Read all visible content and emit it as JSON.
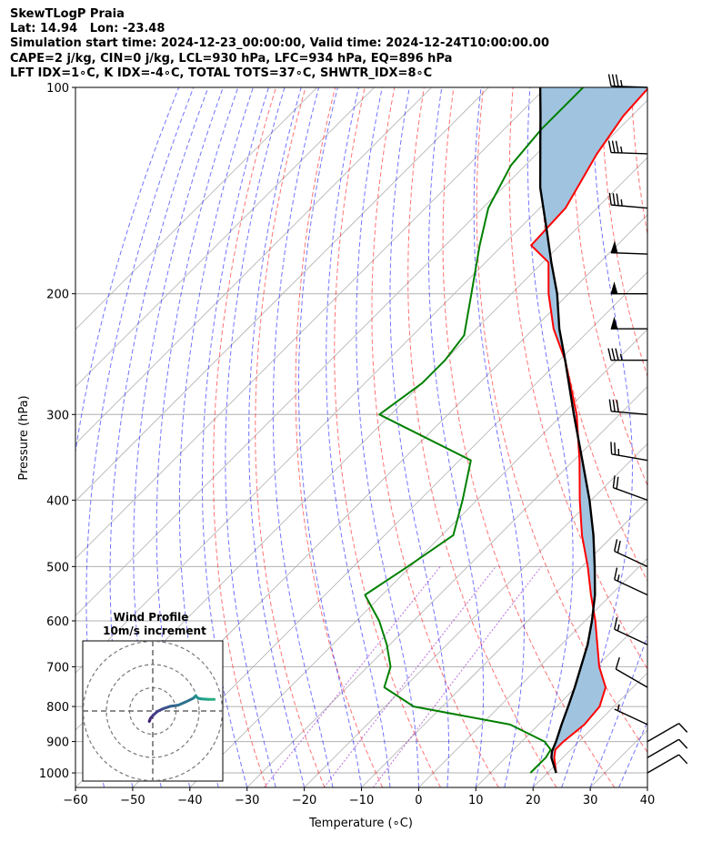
{
  "header": {
    "line1": "SkewTLogP Praia",
    "line2": "Lat: 14.94   Lon: -23.48",
    "line3": "Simulation start time: 2024-12-23_00:00:00, Valid time: 2024-12-24T10:00:00.00",
    "line4": "CAPE=2 j/kg, CIN=0 j/kg, LCL=930 hPa, LFC=934 hPa, EQ=896 hPa",
    "line5": "LFT IDX=1∘C, K IDX=-4∘C, TOTAL TOTS=37∘C, SHWTR_IDX=8∘C"
  },
  "chart_data": {
    "type": "line",
    "xlabel": "Temperature (∘C)",
    "ylabel": "Pressure (hPa)",
    "xlim": [
      -60,
      40
    ],
    "ylim": [
      1050,
      100
    ],
    "y_scale": "log",
    "skew": true,
    "grid": true,
    "x_ticks": [
      "−60",
      "−50",
      "−40",
      "−30",
      "−20",
      "−10",
      "0",
      "10",
      "20",
      "30",
      "40"
    ],
    "y_ticks": [
      "100",
      "200",
      "300",
      "400",
      "500",
      "600",
      "700",
      "800",
      "900",
      "1000"
    ],
    "series": [
      {
        "role": "temperature",
        "color": "#ff0000",
        "points": [
          [
            1000,
            21.5
          ],
          [
            950,
            18.5
          ],
          [
            925,
            17.3
          ],
          [
            900,
            17.3
          ],
          [
            850,
            18.0
          ],
          [
            800,
            17.5
          ],
          [
            750,
            15.2
          ],
          [
            700,
            10.5
          ],
          [
            650,
            6.3
          ],
          [
            600,
            1.8
          ],
          [
            550,
            -3.5
          ],
          [
            500,
            -9.0
          ],
          [
            450,
            -15.5
          ],
          [
            400,
            -22.0
          ],
          [
            350,
            -29.0
          ],
          [
            300,
            -37.5
          ],
          [
            250,
            -49.0
          ],
          [
            225,
            -56.5
          ],
          [
            200,
            -63.5
          ],
          [
            180,
            -69.0
          ],
          [
            170,
            -75.0
          ],
          [
            150,
            -75.5
          ],
          [
            125,
            -79.5
          ],
          [
            110,
            -81.5
          ],
          [
            100,
            -82.0
          ]
        ]
      },
      {
        "role": "dewpoint",
        "color": "#008000",
        "points": [
          [
            1000,
            17.0
          ],
          [
            950,
            17.0
          ],
          [
            925,
            16.5
          ],
          [
            900,
            14.0
          ],
          [
            850,
            5.0
          ],
          [
            800,
            -15.0
          ],
          [
            750,
            -23.5
          ],
          [
            700,
            -26.0
          ],
          [
            650,
            -30.5
          ],
          [
            600,
            -36.0
          ],
          [
            550,
            -43.0
          ],
          [
            500,
            -40.5
          ],
          [
            450,
            -38.0
          ],
          [
            400,
            -42.5
          ],
          [
            350,
            -48.0
          ],
          [
            300,
            -72.0
          ],
          [
            270,
            -70.0
          ],
          [
            250,
            -70.0
          ],
          [
            230,
            -71.0
          ],
          [
            200,
            -77.0
          ],
          [
            170,
            -84.0
          ],
          [
            150,
            -89.0
          ],
          [
            130,
            -92.5
          ],
          [
            115,
            -93.5
          ],
          [
            100,
            -93.5
          ]
        ]
      },
      {
        "role": "parcel",
        "color": "#000000",
        "points": [
          [
            1000,
            21.5
          ],
          [
            950,
            18.0
          ],
          [
            930,
            17.0
          ],
          [
            900,
            16.0
          ],
          [
            850,
            14.0
          ],
          [
            800,
            12.0
          ],
          [
            750,
            9.8
          ],
          [
            700,
            7.3
          ],
          [
            650,
            4.6
          ],
          [
            600,
            1.2
          ],
          [
            550,
            -2.8
          ],
          [
            500,
            -7.8
          ],
          [
            450,
            -13.5
          ],
          [
            400,
            -20.3
          ],
          [
            350,
            -28.5
          ],
          [
            300,
            -38.0
          ],
          [
            250,
            -49.0
          ],
          [
            225,
            -55.5
          ],
          [
            200,
            -62.0
          ],
          [
            180,
            -68.5
          ],
          [
            160,
            -75.5
          ],
          [
            140,
            -83.5
          ],
          [
            120,
            -91.5
          ],
          [
            110,
            -96.0
          ],
          [
            100,
            -101.0
          ]
        ]
      }
    ],
    "shaded_region": {
      "between": [
        "parcel",
        "temperature"
      ],
      "color": "#a0c4e0"
    },
    "wind_barbs": [
      {
        "p": 100,
        "dir": 272,
        "spd": 35
      },
      {
        "p": 125,
        "dir": 272,
        "spd": 35
      },
      {
        "p": 150,
        "dir": 275,
        "spd": 35
      },
      {
        "p": 175,
        "dir": 272,
        "spd": 50
      },
      {
        "p": 200,
        "dir": 270,
        "spd": 50
      },
      {
        "p": 225,
        "dir": 270,
        "spd": 50
      },
      {
        "p": 250,
        "dir": 270,
        "spd": 35
      },
      {
        "p": 300,
        "dir": 275,
        "spd": 30
      },
      {
        "p": 350,
        "dir": 280,
        "spd": 25
      },
      {
        "p": 400,
        "dir": 290,
        "spd": 20
      },
      {
        "p": 500,
        "dir": 295,
        "spd": 20
      },
      {
        "p": 550,
        "dir": 295,
        "spd": 15
      },
      {
        "p": 650,
        "dir": 295,
        "spd": 15
      },
      {
        "p": 750,
        "dir": 300,
        "spd": 10
      },
      {
        "p": 850,
        "dir": 295,
        "spd": 5
      },
      {
        "p": 900,
        "dir": 60,
        "spd": 10
      },
      {
        "p": 950,
        "dir": 60,
        "spd": 10
      },
      {
        "p": 1000,
        "dir": 60,
        "spd": 10
      }
    ],
    "inset": {
      "title_line1": "Wind Profile",
      "title_line2": "10m/s increment",
      "type": "hodograph",
      "rings_ms": [
        10,
        20,
        30
      ],
      "points_ms": [
        [
          -1.5,
          -4.5
        ],
        [
          -1.3,
          -4.0
        ],
        [
          -1.0,
          -3.2
        ],
        [
          0.2,
          -1.8
        ],
        [
          2.0,
          -0.2
        ],
        [
          4.5,
          1.0
        ],
        [
          7.5,
          2.0
        ],
        [
          11.0,
          2.5
        ],
        [
          14.0,
          3.8
        ],
        [
          17.5,
          5.5
        ],
        [
          18.5,
          6.5
        ],
        [
          19.5,
          5.5
        ],
        [
          21.0,
          5.2
        ],
        [
          24.0,
          5.0
        ],
        [
          26.5,
          5.0
        ]
      ]
    }
  }
}
